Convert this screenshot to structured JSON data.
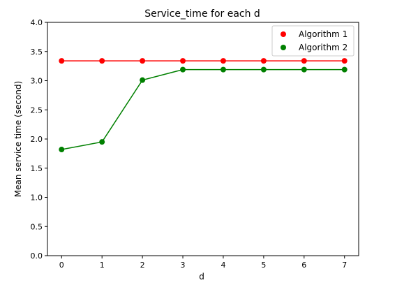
{
  "chart_data": {
    "type": "line",
    "title": "Service_time for each d",
    "xlabel": "d",
    "ylabel": "Mean service time (second)",
    "x": [
      0,
      1,
      2,
      3,
      4,
      5,
      6,
      7
    ],
    "xlim": [
      -0.35,
      7.35
    ],
    "ylim": [
      0.0,
      4.0
    ],
    "xticks": [
      "0",
      "1",
      "2",
      "3",
      "4",
      "5",
      "6",
      "7"
    ],
    "yticks": [
      "0.0",
      "0.5",
      "1.0",
      "1.5",
      "2.0",
      "2.5",
      "3.0",
      "3.5",
      "4.0"
    ],
    "grid": false,
    "legend_position": "top-right",
    "series": [
      {
        "name": "Algorithm 1",
        "color": "#ff0000",
        "values": [
          3.34,
          3.34,
          3.34,
          3.34,
          3.34,
          3.34,
          3.34,
          3.34
        ]
      },
      {
        "name": "Algorithm 2",
        "color": "#008000",
        "values": [
          1.82,
          1.95,
          3.01,
          3.19,
          3.19,
          3.19,
          3.19,
          3.19
        ]
      }
    ]
  }
}
